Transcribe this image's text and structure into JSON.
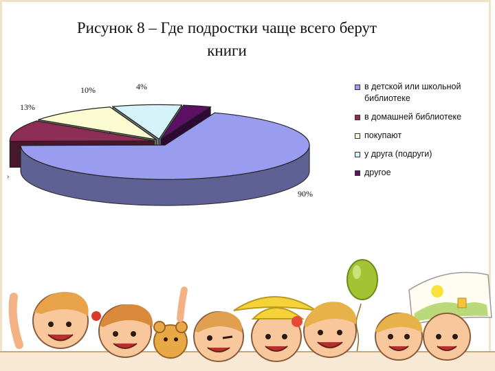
{
  "figure": {
    "title_line1": "Рисунок 8 – Где подростки чаще всего берут",
    "title_line2": "книги",
    "mark": "›"
  },
  "chart_data": {
    "type": "pie",
    "title": "Рисунок 8 – Где подростки чаще всего берут книги",
    "slices": [
      {
        "label": "в детской или школьной библиотеке",
        "value": 90,
        "value_label": "90%",
        "color": "#9a9cf0"
      },
      {
        "label": "в домашней библиотеке",
        "value": 13,
        "value_label": "13%",
        "color": "#8e2d55"
      },
      {
        "label": "покупают",
        "value": 13,
        "value_label": "",
        "color": "#fbfbd2"
      },
      {
        "label": "у друга (подруги)",
        "value": 10,
        "value_label": "10%",
        "color": "#d7f3fa"
      },
      {
        "label": "другое",
        "value": 4,
        "value_label": "4%",
        "color": "#5e1065"
      }
    ],
    "legend": "right",
    "three_d": true
  }
}
